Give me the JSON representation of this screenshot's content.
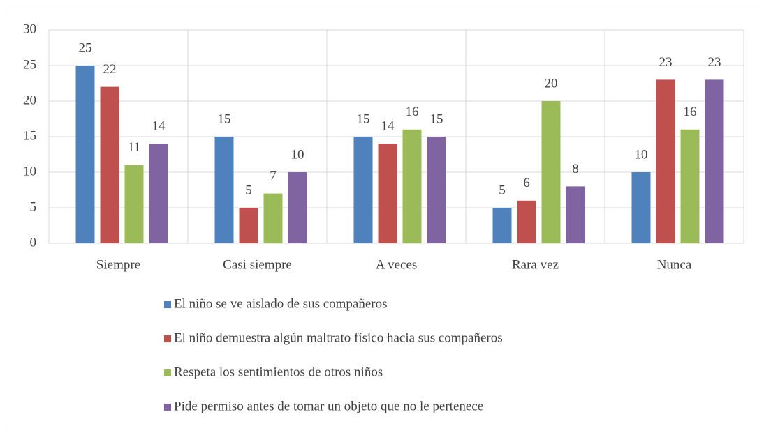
{
  "chart_data": {
    "type": "bar",
    "categories": [
      "Siempre",
      "Casi siempre",
      "A veces",
      "Rara vez",
      "Nunca"
    ],
    "series": [
      {
        "name": "El niño se ve aislado de sus compañeros",
        "color": "#4f81bd",
        "values": [
          25,
          15,
          15,
          5,
          10
        ]
      },
      {
        "name": "El niño demuestra algún maltrato físico hacia sus compañeros",
        "color": "#c0504d",
        "values": [
          22,
          5,
          14,
          6,
          23
        ]
      },
      {
        "name": "Respeta los sentimientos de otros niños",
        "color": "#9bbb59",
        "values": [
          11,
          7,
          16,
          20,
          16
        ]
      },
      {
        "name": "Pide permiso antes de tomar un objeto que no le pertenece",
        "color": "#8064a2",
        "values": [
          14,
          10,
          15,
          8,
          23
        ]
      }
    ],
    "ylim": [
      0,
      30
    ],
    "yticks": [
      0,
      5,
      10,
      15,
      20,
      25,
      30
    ],
    "grid": true,
    "legend": "bottom"
  }
}
